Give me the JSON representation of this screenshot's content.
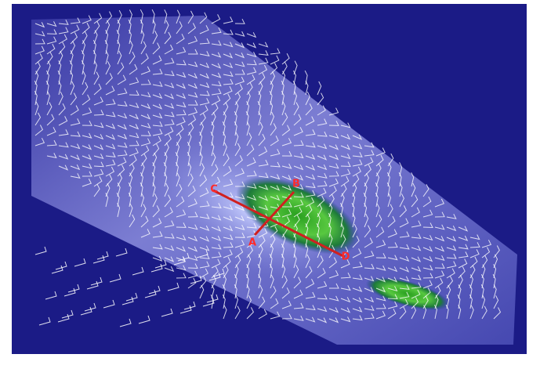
{
  "markers": [
    {
      "label": "C"
    },
    {
      "label": "B"
    },
    {
      "label": "A"
    },
    {
      "label": "D"
    }
  ]
}
